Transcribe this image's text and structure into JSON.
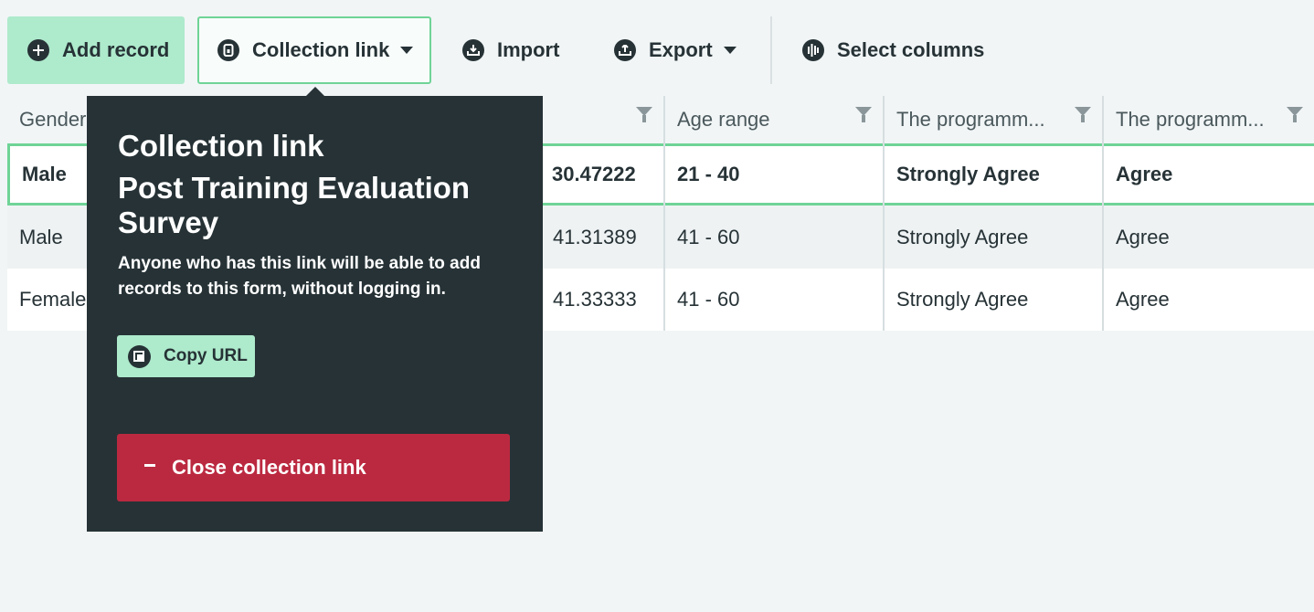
{
  "toolbar": {
    "add_label": "Add record",
    "link_label": "Collection link",
    "import_label": "Import",
    "export_label": "Export",
    "columns_label": "Select columns"
  },
  "table": {
    "headers": [
      "Gender",
      "",
      "Age range",
      "The programm...",
      "The programm..."
    ],
    "rows": [
      [
        "Male",
        "30.47222",
        "21 - 40",
        "Strongly Agree",
        "Agree"
      ],
      [
        "Male",
        "41.31389",
        "41 - 60",
        "Strongly Agree",
        "Agree"
      ],
      [
        "Female",
        "41.33333",
        "41 - 60",
        "Strongly Agree",
        "Agree"
      ]
    ]
  },
  "popover": {
    "title": "Collection link",
    "form_name": "Post Training Evaluation Survey",
    "description": "Anyone who has this link will be able to add records to this form, without logging in.",
    "copy_label": "Copy URL",
    "close_label": "Close collection link"
  },
  "colors": {
    "primary_green": "#aeeacc",
    "accent_green": "#6fd497",
    "dark": "#263236",
    "danger": "#bb2940"
  }
}
